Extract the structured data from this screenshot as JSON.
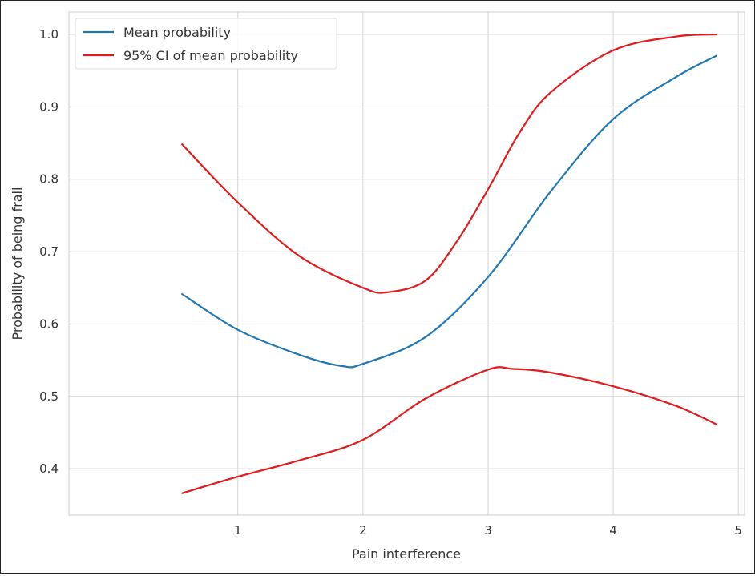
{
  "chart_data": {
    "type": "line",
    "title": "",
    "xlabel": "Pain interference",
    "ylabel": "Probability of being frail",
    "xlim": [
      -0.35,
      5.05
    ],
    "ylim": [
      0.336,
      1.031
    ],
    "xticks": [
      1,
      2,
      3,
      4,
      5
    ],
    "yticks": [
      0.4,
      0.5,
      0.6,
      0.7,
      0.8,
      0.9,
      1.0
    ],
    "ytick_labels": [
      "0.4",
      "0.5",
      "0.6",
      "0.7",
      "0.8",
      "0.9",
      "1.0"
    ],
    "grid": true,
    "legend_position": "top-left",
    "series": [
      {
        "name": "Mean probability",
        "color": "#1f77b4",
        "x": [
          0.55,
          1.0,
          1.5,
          1.83,
          2.0,
          2.5,
          3.0,
          3.5,
          4.0,
          4.5,
          4.83
        ],
        "y": [
          0.642,
          0.592,
          0.557,
          0.542,
          0.545,
          0.582,
          0.665,
          0.783,
          0.883,
          0.941,
          0.971
        ]
      },
      {
        "name": "95% CI of mean probability",
        "color": "#e31a1c",
        "x": [
          0.55,
          1.0,
          1.5,
          2.0,
          2.2,
          2.5,
          2.75,
          3.0,
          3.25,
          3.5,
          4.0,
          4.5,
          4.83
        ],
        "y": [
          0.849,
          0.768,
          0.693,
          0.65,
          0.644,
          0.66,
          0.714,
          0.786,
          0.864,
          0.92,
          0.978,
          0.997,
          1.0
        ]
      },
      {
        "legend": false,
        "color": "#e31a1c",
        "x": [
          0.55,
          1.0,
          1.5,
          2.0,
          2.5,
          3.0,
          3.2,
          3.5,
          4.0,
          4.5,
          4.83
        ],
        "y": [
          0.366,
          0.389,
          0.412,
          0.44,
          0.497,
          0.537,
          0.538,
          0.533,
          0.514,
          0.487,
          0.461
        ]
      }
    ]
  }
}
